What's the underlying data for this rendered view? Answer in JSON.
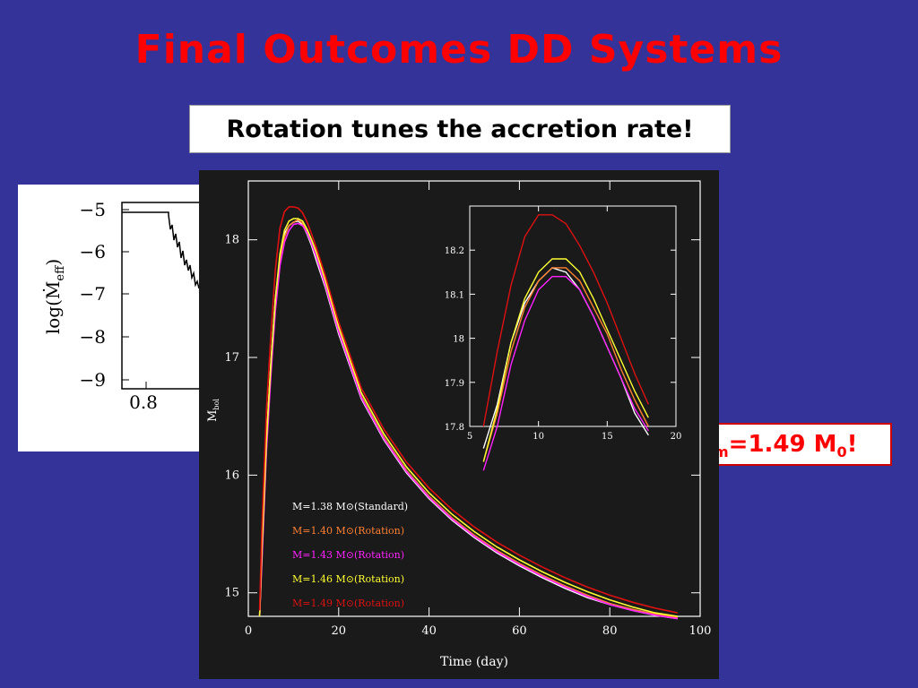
{
  "slide": {
    "title": "Final Outcomes DD Systems",
    "subtitle": "Rotation tunes the accretion rate!",
    "mass_note": {
      "pre": "",
      "sub": "m",
      "mid": "=1.49 M",
      "sub2": "0",
      "post": "!"
    }
  },
  "left_panel": {
    "ylabel_main": "log(Ṁ",
    "ylabel_sub": "eff",
    "ylabel_end": ")",
    "yticks": [
      "−5",
      "−6",
      "−7",
      "−8",
      "−9"
    ],
    "xticks": [
      "0.8"
    ]
  },
  "chart_data": [
    {
      "type": "line",
      "xlabel": "Time (day)",
      "ylabel": "M",
      "ylabel_sub": "bol",
      "xlim": [
        0,
        100
      ],
      "ylim": [
        14.8,
        18.5
      ],
      "xticks": [
        0,
        20,
        40,
        60,
        80,
        100
      ],
      "yticks": [
        15,
        16,
        17,
        18
      ],
      "x": [
        2.5,
        3,
        4,
        5,
        6,
        7,
        8,
        9,
        10,
        11,
        12,
        13,
        14,
        15,
        17,
        20,
        25,
        30,
        35,
        40,
        45,
        50,
        55,
        60,
        65,
        70,
        75,
        80,
        85,
        90,
        95
      ],
      "series": [
        {
          "name": "M=1.38 M⊙(Standard)",
          "color": "#ffffff",
          "values": [
            14.8,
            15.35,
            16.3,
            16.95,
            17.5,
            17.85,
            18.05,
            18.12,
            18.15,
            18.16,
            18.13,
            18.05,
            17.95,
            17.83,
            17.6,
            17.2,
            16.65,
            16.3,
            16.02,
            15.8,
            15.62,
            15.47,
            15.34,
            15.23,
            15.13,
            15.04,
            14.96,
            14.9,
            14.85,
            14.81,
            14.78
          ]
        },
        {
          "name": "M=1.40 M⊙(Rotation)",
          "color": "#ff8033",
          "values": [
            14.8,
            15.3,
            16.25,
            16.9,
            17.45,
            17.82,
            18.02,
            18.12,
            18.15,
            18.17,
            18.14,
            18.07,
            17.97,
            17.86,
            17.62,
            17.22,
            16.67,
            16.32,
            16.04,
            15.82,
            15.64,
            15.49,
            15.36,
            15.25,
            15.15,
            15.06,
            14.98,
            14.91,
            14.86,
            14.82,
            14.79
          ]
        },
        {
          "name": "M=1.43 M⊙(Rotation)",
          "color": "#ff22ff",
          "values": [
            14.8,
            15.25,
            16.2,
            16.85,
            17.4,
            17.78,
            17.98,
            18.08,
            18.13,
            18.14,
            18.12,
            18.06,
            17.97,
            17.86,
            17.62,
            17.22,
            16.66,
            16.31,
            16.03,
            15.81,
            15.63,
            15.48,
            15.35,
            15.24,
            15.14,
            15.05,
            14.97,
            14.9,
            14.85,
            14.81,
            14.78
          ]
        },
        {
          "name": "M=1.46 M⊙(Rotation)",
          "color": "#ffff33",
          "values": [
            14.8,
            15.35,
            16.3,
            16.95,
            17.5,
            17.88,
            18.08,
            18.16,
            18.18,
            18.18,
            18.16,
            18.09,
            18.0,
            17.9,
            17.66,
            17.26,
            16.7,
            16.35,
            16.07,
            15.85,
            15.67,
            15.52,
            15.39,
            15.28,
            15.18,
            15.09,
            15.01,
            14.94,
            14.88,
            14.83,
            14.8
          ]
        },
        {
          "name": "M=1.49 M⊙(Rotation)",
          "color": "#dd1111",
          "values": [
            14.85,
            15.55,
            16.55,
            17.2,
            17.75,
            18.1,
            18.24,
            18.28,
            18.28,
            18.27,
            18.23,
            18.15,
            18.05,
            17.94,
            17.7,
            17.3,
            16.74,
            16.39,
            16.11,
            15.89,
            15.71,
            15.56,
            15.43,
            15.32,
            15.22,
            15.13,
            15.05,
            14.98,
            14.92,
            14.87,
            14.83
          ]
        }
      ]
    },
    {
      "type": "line",
      "xlim": [
        5,
        20
      ],
      "ylim": [
        17.8,
        18.3
      ],
      "xticks": [
        5,
        10,
        15,
        20
      ],
      "yticks": [
        17.8,
        17.9,
        18,
        18.1,
        18.2
      ],
      "ytick_labels": [
        "17.8",
        "17.9",
        "18",
        "18.1",
        "18.2"
      ],
      "x": [
        6,
        7,
        8,
        9,
        10,
        11,
        12,
        13,
        14,
        15,
        16,
        17,
        18
      ],
      "series": [
        {
          "name": "M=1.38 M⊙(Standard)",
          "color": "#ffffff",
          "values": [
            17.75,
            17.85,
            17.99,
            18.08,
            18.13,
            18.16,
            18.15,
            18.11,
            18.05,
            17.98,
            17.91,
            17.83,
            17.78
          ]
        },
        {
          "name": "M=1.40 M⊙(Rotation)",
          "color": "#ff8033",
          "values": [
            17.72,
            17.83,
            17.97,
            18.07,
            18.13,
            18.16,
            18.16,
            18.13,
            18.07,
            18.01,
            17.93,
            17.86,
            17.8
          ]
        },
        {
          "name": "M=1.43 M⊙(Rotation)",
          "color": "#ff22ff",
          "values": [
            17.7,
            17.8,
            17.94,
            18.04,
            18.11,
            18.14,
            18.14,
            18.11,
            18.05,
            17.98,
            17.91,
            17.84,
            17.79
          ]
        },
        {
          "name": "M=1.46 M⊙(Rotation)",
          "color": "#ffff33",
          "values": [
            17.72,
            17.84,
            17.99,
            18.09,
            18.15,
            18.18,
            18.18,
            18.15,
            18.09,
            18.02,
            17.95,
            17.88,
            17.82
          ]
        },
        {
          "name": "M=1.49 M⊙(Rotation)",
          "color": "#dd1111",
          "values": [
            17.8,
            17.97,
            18.12,
            18.23,
            18.28,
            18.28,
            18.26,
            18.21,
            18.15,
            18.08,
            18.0,
            17.92,
            17.85
          ]
        }
      ]
    }
  ]
}
